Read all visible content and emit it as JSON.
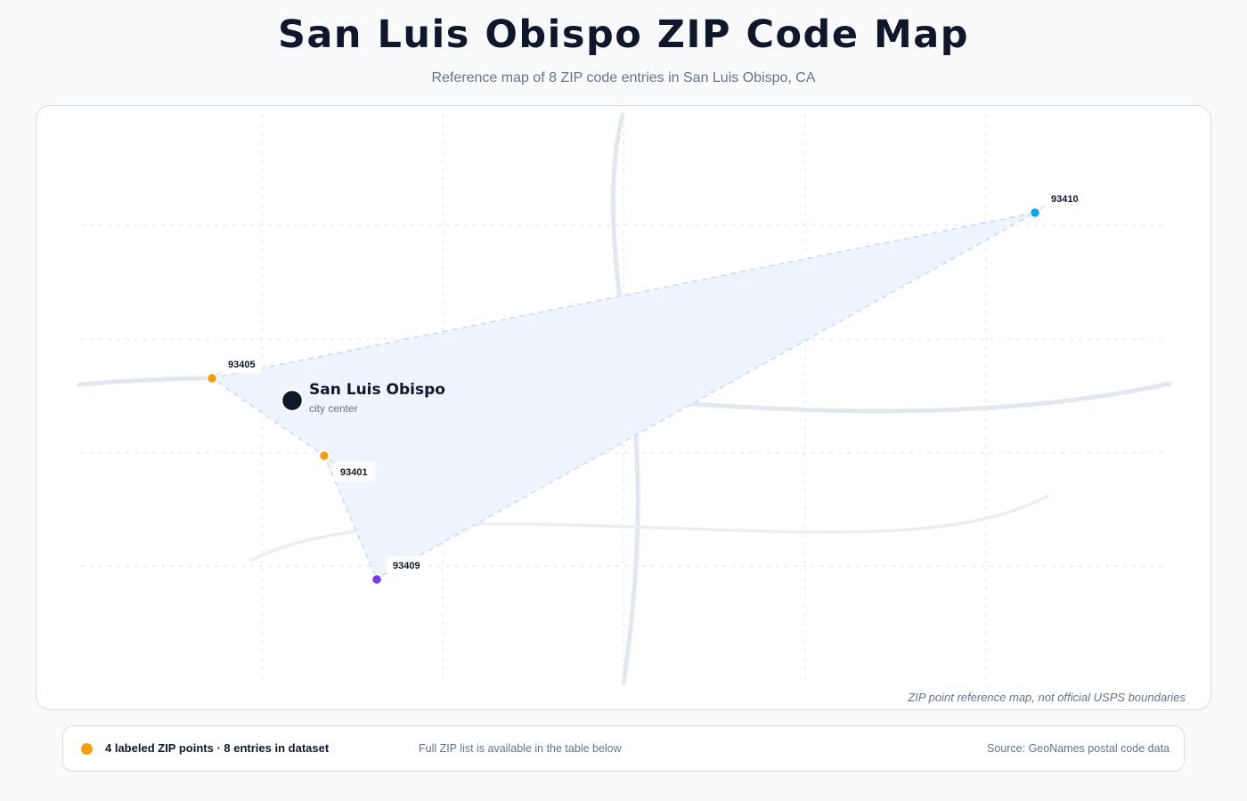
{
  "header": {
    "title": "San Luis Obispo ZIP Code Map",
    "subtitle": "Reference map of 8 ZIP code entries in San Luis Obispo, CA"
  },
  "map": {
    "city": {
      "name": "San Luis Obispo",
      "caption": "city center",
      "color": "#0f172a"
    },
    "zip_points": [
      {
        "zip": "93405",
        "color": "#f59e0b"
      },
      {
        "zip": "93401",
        "color": "#f59e0b"
      },
      {
        "zip": "93409",
        "color": "#7c3aed"
      },
      {
        "zip": "93410",
        "color": "#0ea5e9"
      }
    ],
    "coverage_fill": "#eff5fe",
    "disclaimer": "ZIP point reference map, not official USPS boundaries"
  },
  "legend": {
    "dot_color": "#f59e0b",
    "count_text": "4 labeled ZIP points · 8 entries in dataset",
    "note": "Full ZIP list is available in the table below",
    "source": "Source: GeoNames postal code data"
  }
}
